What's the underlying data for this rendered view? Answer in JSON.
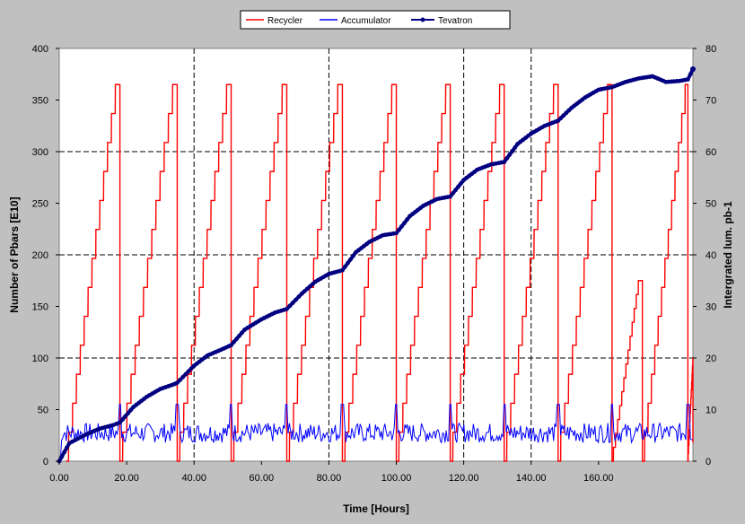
{
  "chart_data": {
    "type": "line",
    "xlabel": "Time [Hours]",
    "ylabel_left": "Number of Pbars [E10]",
    "ylabel_right": "Intergrated lum. pb-1",
    "xlim": [
      0,
      188
    ],
    "ylim_left": [
      0,
      400
    ],
    "ylim_right": [
      0,
      80
    ],
    "x_ticks": [
      "0.00",
      "20.00",
      "40.00",
      "60.00",
      "80.00",
      "100.00",
      "120.00",
      "140.00",
      "160.00"
    ],
    "x_tick_values": [
      0,
      20,
      40,
      60,
      80,
      100,
      120,
      140,
      160
    ],
    "y_ticks_left": [
      "0",
      "50",
      "100",
      "150",
      "200",
      "250",
      "300",
      "350",
      "400"
    ],
    "y_ticks_right": [
      "0",
      "10",
      "20",
      "30",
      "40",
      "50",
      "60",
      "70",
      "80"
    ],
    "grid": {
      "horizontal_dashed": [
        100,
        200,
        300
      ],
      "vertical_dashed": [
        40,
        80,
        120,
        140
      ]
    },
    "legend_position": "top-center",
    "legend": [
      "Recycler",
      "Accumulator",
      "Tevatron"
    ],
    "series": [
      {
        "name": "Recycler",
        "axis": "left",
        "color": "#ff0000",
        "description_points": "sawtooth",
        "cycles": [
          {
            "start": 2,
            "peak_time": 17,
            "peak": 365,
            "drop_time": 18
          },
          {
            "start": 18,
            "peak_time": 34,
            "peak": 365,
            "drop_time": 35
          },
          {
            "start": 35,
            "peak_time": 50,
            "peak": 365,
            "drop_time": 51
          },
          {
            "start": 51,
            "peak_time": 66.5,
            "peak": 365,
            "drop_time": 67.5
          },
          {
            "start": 67.5,
            "peak_time": 83,
            "peak": 365,
            "drop_time": 84
          },
          {
            "start": 84,
            "peak_time": 99,
            "peak": 365,
            "drop_time": 100
          },
          {
            "start": 100,
            "peak_time": 115,
            "peak": 365,
            "drop_time": 116
          },
          {
            "start": 116,
            "peak_time": 131,
            "peak": 365,
            "drop_time": 132
          },
          {
            "start": 132,
            "peak_time": 147,
            "peak": 365,
            "drop_time": 148
          },
          {
            "start": 148,
            "peak_time": 163,
            "peak": 365,
            "drop_time": 164
          },
          {
            "start": 164,
            "peak_time": 172,
            "peak": 175,
            "drop_time": 173
          },
          {
            "start": 173,
            "peak_time": 186,
            "peak": 365,
            "drop_time": 186.5
          },
          {
            "start": 186.5,
            "peak_time": 188,
            "peak": 100,
            "drop_time": 188
          }
        ]
      },
      {
        "name": "Accumulator",
        "axis": "left",
        "color": "#0000ff",
        "description_points": "oscillating between ~18 and ~37 with spikes to ~55 at each Recycler transfer",
        "range": [
          18,
          37
        ],
        "spikes_at": [
          18,
          35,
          51,
          67.5,
          84,
          100,
          116,
          132,
          148,
          164,
          186.5
        ],
        "spike_height": 55
      },
      {
        "name": "Tevatron",
        "axis": "right",
        "color": "#000080",
        "x": [
          0,
          3,
          8,
          12,
          16,
          18,
          22,
          26,
          30,
          34,
          35,
          40,
          44,
          48,
          51,
          55,
          60,
          64,
          67.5,
          72,
          76,
          80,
          84,
          88,
          92,
          96,
          100,
          104,
          108,
          112,
          116,
          120,
          124,
          128,
          132,
          136,
          140,
          144,
          148,
          152,
          156,
          160,
          164,
          168,
          172,
          176,
          180,
          184,
          186.5,
          188
        ],
        "y": [
          0,
          3.5,
          5.2,
          6.3,
          7.0,
          7.5,
          10.5,
          12.5,
          14.0,
          14.9,
          15.2,
          18.5,
          20.5,
          21.6,
          22.5,
          25.5,
          27.5,
          28.8,
          29.5,
          32.5,
          34.8,
          36.3,
          37,
          40.5,
          42.5,
          43.8,
          44.2,
          47.5,
          49.5,
          50.8,
          51.3,
          54.5,
          56.5,
          57.5,
          58,
          61.5,
          63.5,
          65,
          66,
          68.5,
          70.5,
          72,
          72.5,
          73.5,
          74.2,
          74.6,
          73.5,
          73.7,
          74.0,
          76.0
        ]
      }
    ]
  }
}
